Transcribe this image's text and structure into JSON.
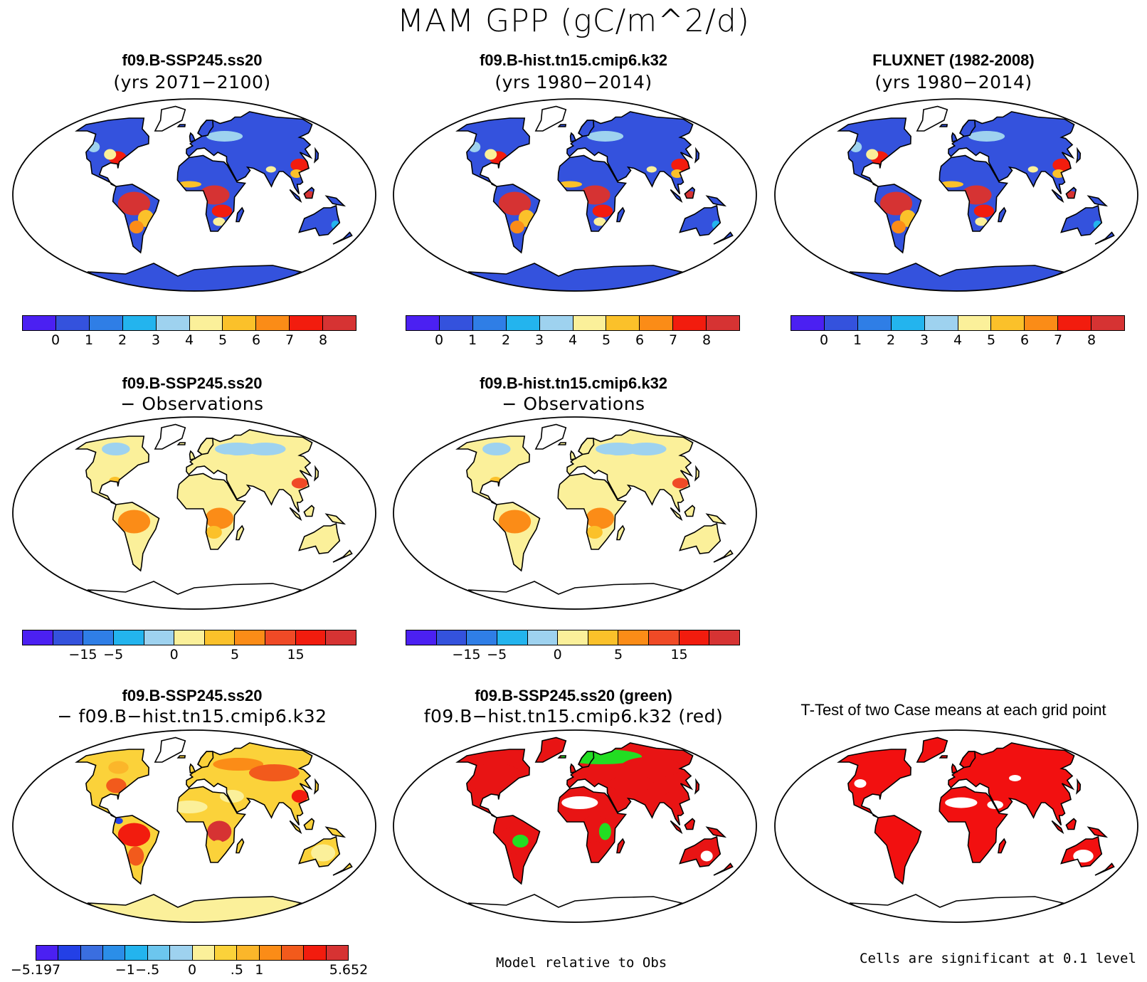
{
  "main_title": "MAM GPP (gC/m^2/d)",
  "palettes": {
    "abs": [
      "#4b20f2",
      "#3452dd",
      "#2f7ee6",
      "#23b4ee",
      "#9ed2ef",
      "#fbf09a",
      "#fbc12a",
      "#fb8c17",
      "#f21c0e",
      "#d63333"
    ],
    "bias": [
      "#4b20f2",
      "#3452dd",
      "#2f7ee6",
      "#23b4ee",
      "#9ed2ef",
      "#fbf09a",
      "#fbc12a",
      "#fb8c17",
      "#f04a26",
      "#f21c0e",
      "#d63333"
    ],
    "diff": [
      "#4b20f2",
      "#2340e6",
      "#3a6ee0",
      "#2b8ee8",
      "#23b4ee",
      "#6cc6ee",
      "#9ed2ef",
      "#fbf09a",
      "#fbd23a",
      "#fbb62a",
      "#fb8c17",
      "#f25a1c",
      "#f21c0e",
      "#d63333"
    ]
  },
  "panels": [
    {
      "id": "p1",
      "title": "f09.B-SSP245.ss20",
      "subtitle": "(yrs 2071−2100)",
      "style": "abs"
    },
    {
      "id": "p2",
      "title": "f09.B-hist.tn15.cmip6.k32",
      "subtitle": "(yrs 1980−2014)",
      "style": "abs"
    },
    {
      "id": "p3",
      "title": "FLUXNET (1982-2008)",
      "subtitle": "(yrs 1980−2014)",
      "style": "abs"
    },
    {
      "id": "p4",
      "title": "f09.B-SSP245.ss20",
      "subtitle": "− Observations",
      "style": "bias"
    },
    {
      "id": "p5",
      "title": "f09.B-hist.tn15.cmip6.k32",
      "subtitle": "− Observations",
      "style": "bias"
    },
    {
      "id": "p6",
      "title": "f09.B-SSP245.ss20",
      "subtitle": "− f09.B−hist.tn15.cmip6.k32",
      "style": "diff"
    },
    {
      "id": "p7",
      "title": "f09.B-SSP245.ss20 (green)",
      "subtitle": "f09.B−hist.tn15.cmip6.k32 (red)",
      "style": "green"
    },
    {
      "id": "p8",
      "title": "T-Test of two Case means at each grid point",
      "subtitle": "",
      "style": "ttest"
    }
  ],
  "colorbars": {
    "abs_labels": [
      "0",
      "1",
      "2",
      "3",
      "4",
      "5",
      "6",
      "7",
      "8"
    ],
    "bias_labels": [
      "−15",
      "−5",
      "0",
      "5",
      "15"
    ],
    "diff_labels": [
      "−5.197",
      "−1",
      "−.5",
      "0",
      ".5",
      "1",
      "5.652"
    ]
  },
  "footnotes": {
    "model_relative": "Model relative to Obs",
    "significance": "Cells are significant at 0.1 level"
  }
}
